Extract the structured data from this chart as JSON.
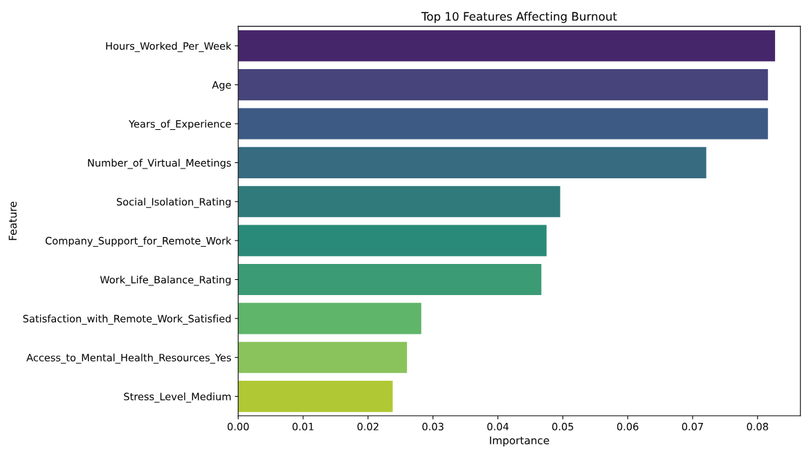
{
  "chart_data": {
    "type": "bar",
    "orientation": "horizontal",
    "title": "Top 10 Features Affecting Burnout",
    "xlabel": "Importance",
    "ylabel": "Feature",
    "categories": [
      "Hours_Worked_Per_Week",
      "Age",
      "Years_of_Experience",
      "Number_of_Virtual_Meetings",
      "Social_Isolation_Rating",
      "Company_Support_for_Remote_Work",
      "Work_Life_Balance_Rating",
      "Satisfaction_with_Remote_Work_Satisfied",
      "Access_to_Mental_Health_Resources_Yes",
      "Stress_Level_Medium"
    ],
    "values": [
      0.0827,
      0.0816,
      0.0816,
      0.0721,
      0.0496,
      0.0475,
      0.0467,
      0.0282,
      0.026,
      0.0238
    ],
    "colors": [
      "#46266a",
      "#46447a",
      "#3d5a84",
      "#366b80",
      "#317a7b",
      "#2a8a7a",
      "#3a9b74",
      "#5fb56a",
      "#8ac35b",
      "#b0c834"
    ],
    "xlim": [
      0,
      0.0866
    ],
    "xticks": [
      {
        "value": 0,
        "label": "0.00"
      },
      {
        "value": 0.01,
        "label": "0.01"
      },
      {
        "value": 0.02,
        "label": "0.02"
      },
      {
        "value": 0.03,
        "label": "0.03"
      },
      {
        "value": 0.04,
        "label": "0.04"
      },
      {
        "value": 0.05,
        "label": "0.05"
      },
      {
        "value": 0.06,
        "label": "0.06"
      },
      {
        "value": 0.07,
        "label": "0.07"
      },
      {
        "value": 0.08,
        "label": "0.08"
      }
    ],
    "grid": false,
    "legend": false
  }
}
